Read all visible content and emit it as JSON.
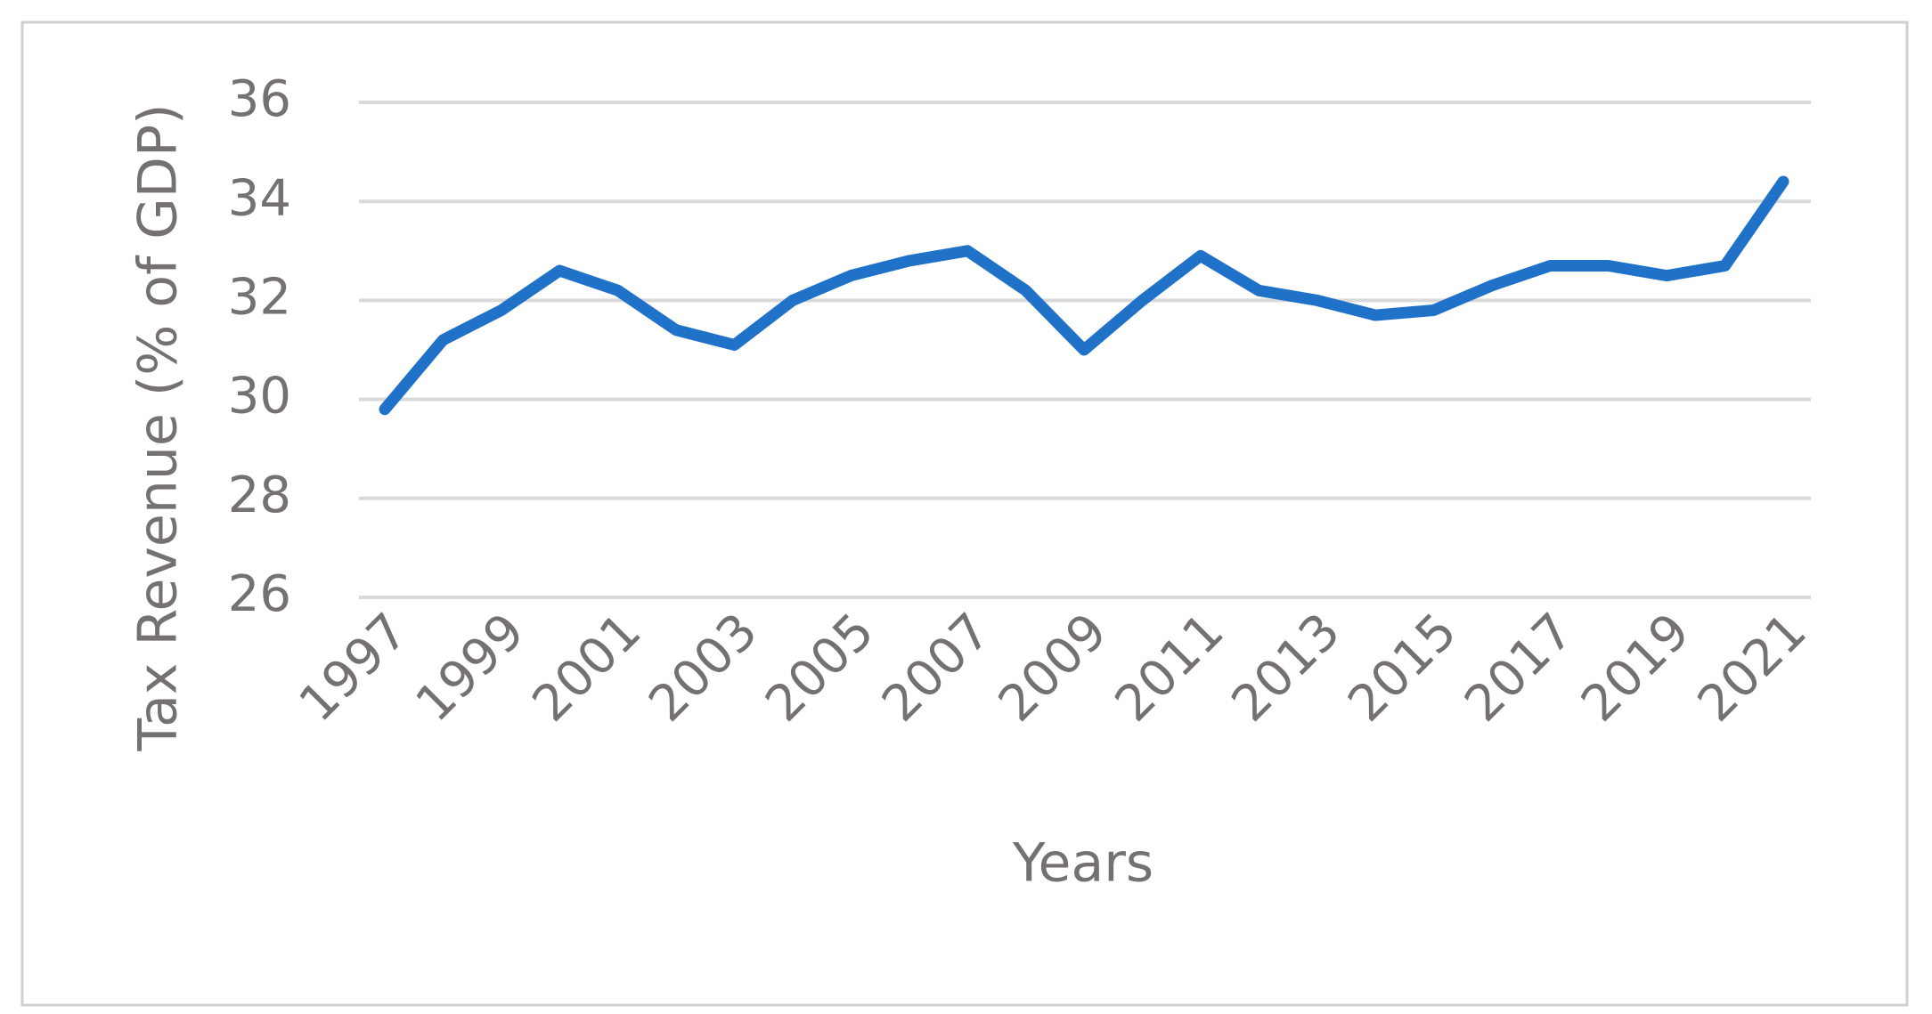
{
  "chart_data": {
    "type": "line",
    "x_label": "Years",
    "y_label": "Tax Revenue (% of GDP)",
    "categories": [
      "1997",
      null,
      "1999",
      null,
      "2001",
      null,
      "2003",
      null,
      "2005",
      null,
      "2007",
      null,
      "2009",
      null,
      "2011",
      null,
      "2013",
      null,
      "2015",
      null,
      "2017",
      null,
      "2019",
      null,
      "2021"
    ],
    "series": [
      {
        "name": null,
        "color": "#1f72c8",
        "values": [
          29.8,
          31.2,
          31.8,
          32.6,
          32.2,
          31.4,
          31.1,
          32.0,
          32.5,
          32.8,
          33.0,
          32.2,
          31.0,
          32.0,
          32.9,
          32.2,
          32.0,
          31.7,
          31.8,
          32.3,
          32.7,
          32.7,
          32.5,
          32.7,
          34.4
        ]
      }
    ],
    "ylim": [
      26,
      36
    ],
    "yticks": [
      26,
      28,
      30,
      32,
      34,
      36
    ],
    "grid": true
  }
}
